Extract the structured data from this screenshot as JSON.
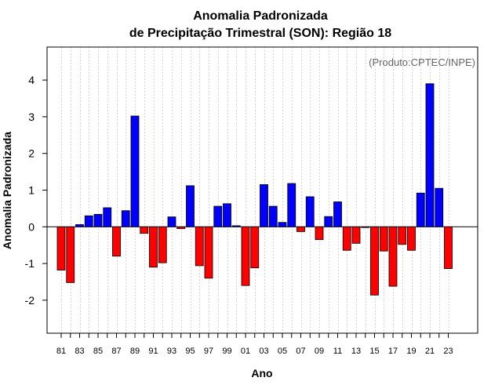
{
  "chart_data": {
    "type": "bar",
    "title_line1": "Anomalia Padronizada",
    "title_line2": "de Precipitação Trimestral (SON): Região 18",
    "credit": "(Produto:CPTEC/INPE)",
    "xlabel": "Ano",
    "ylabel": "Anomalia Padronizada",
    "ylim": [
      -2.9,
      4.9
    ],
    "yticks": [
      -2,
      -1,
      0,
      1,
      2,
      3,
      4
    ],
    "ytick_labels": [
      "-2",
      "-1",
      "0",
      "1",
      "2",
      "3",
      "4"
    ],
    "x_tick_labels": [
      "81",
      "83",
      "85",
      "87",
      "89",
      "91",
      "93",
      "95",
      "97",
      "99",
      "01",
      "03",
      "05",
      "07",
      "09",
      "11",
      "13",
      "15",
      "17",
      "19",
      "21",
      "23"
    ],
    "categories": [
      "1981",
      "1982",
      "1983",
      "1984",
      "1985",
      "1986",
      "1987",
      "1988",
      "1989",
      "1990",
      "1991",
      "1992",
      "1993",
      "1994",
      "1995",
      "1996",
      "1997",
      "1998",
      "1999",
      "2000",
      "2001",
      "2002",
      "2003",
      "2004",
      "2005",
      "2006",
      "2007",
      "2008",
      "2009",
      "2010",
      "2011",
      "2012",
      "2013",
      "2014",
      "2015",
      "2016",
      "2017",
      "2018",
      "2019",
      "2020",
      "2021",
      "2022",
      "2023"
    ],
    "values": [
      -1.18,
      -1.52,
      0.06,
      0.3,
      0.34,
      0.52,
      -0.8,
      0.44,
      3.02,
      -0.18,
      -1.1,
      -0.98,
      0.27,
      -0.05,
      1.12,
      -1.06,
      -1.4,
      0.56,
      0.63,
      0.03,
      -1.6,
      -1.12,
      1.15,
      0.56,
      0.12,
      1.18,
      -0.13,
      0.82,
      -0.35,
      0.28,
      0.68,
      -0.64,
      -0.45,
      -0.02,
      -1.86,
      -0.66,
      -1.62,
      -0.48,
      -0.64,
      0.92,
      3.9,
      1.05,
      -1.14
    ],
    "colors": {
      "positive": "#0000FF",
      "negative": "#FF0000",
      "grid": "#D3D3D3",
      "credit": "#666666"
    },
    "grid": true
  }
}
